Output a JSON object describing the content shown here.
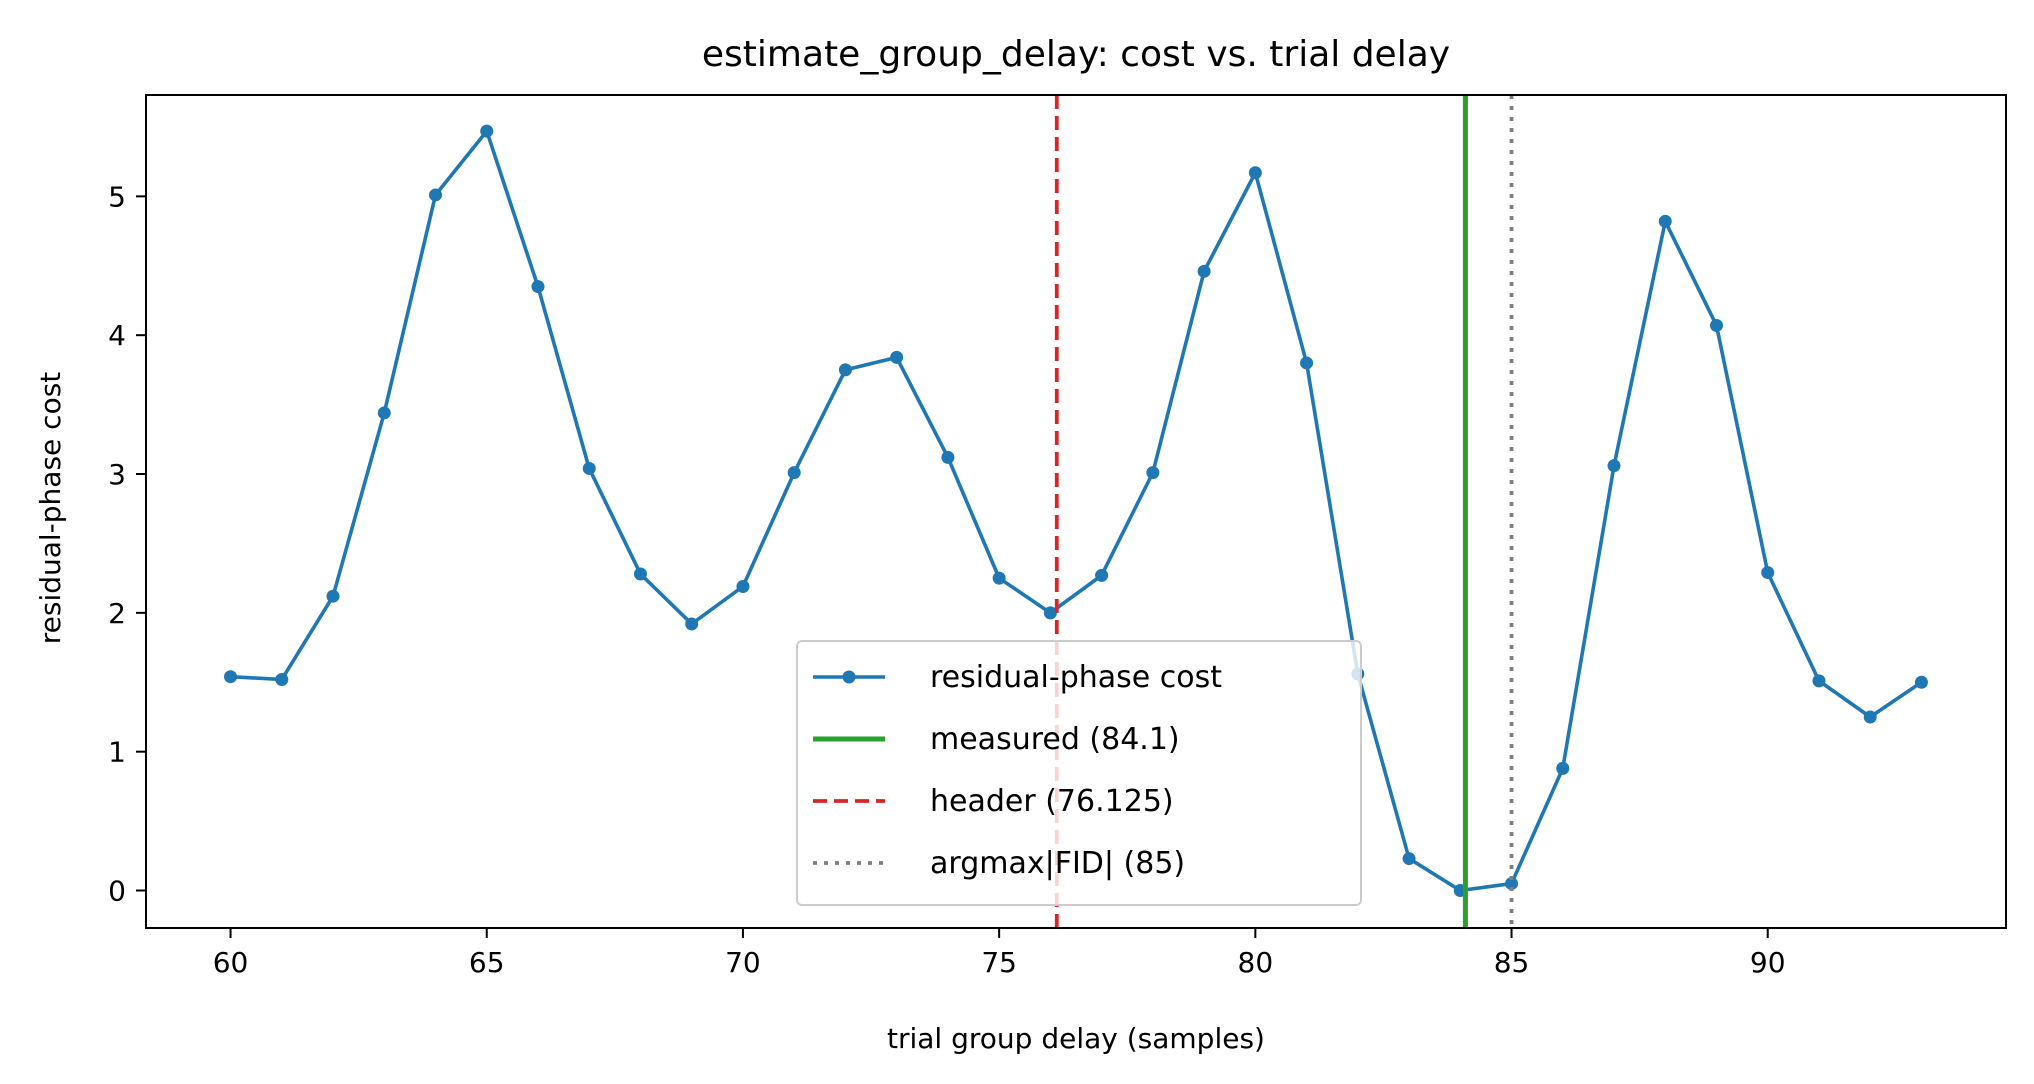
{
  "chart_data": {
    "type": "line",
    "title": "estimate_group_delay: cost vs. trial delay",
    "xlabel": "trial group delay (samples)",
    "ylabel": "residual-phase cost",
    "xlim": [
      58.35,
      94.65
    ],
    "ylim": [
      -0.27,
      5.73
    ],
    "xticks": [
      60,
      65,
      70,
      75,
      80,
      85,
      90
    ],
    "yticks": [
      0,
      1,
      2,
      3,
      4,
      5
    ],
    "grid": false,
    "legend_position": "lower-center",
    "series": [
      {
        "name": "residual-phase cost",
        "color": "#1f77b4",
        "marker": "circle",
        "x": [
          60,
          61,
          62,
          63,
          64,
          65,
          66,
          67,
          68,
          69,
          70,
          71,
          72,
          73,
          74,
          75,
          76,
          77,
          78,
          79,
          80,
          81,
          82,
          83,
          84,
          85,
          86,
          87,
          88,
          89,
          90,
          91,
          92,
          93
        ],
        "y": [
          1.54,
          1.52,
          2.12,
          3.44,
          5.01,
          5.47,
          4.35,
          3.04,
          2.28,
          1.92,
          2.19,
          3.01,
          3.75,
          3.84,
          3.12,
          2.25,
          2.0,
          2.27,
          3.01,
          4.46,
          5.17,
          3.8,
          1.56,
          0.23,
          0.0,
          0.05,
          0.88,
          3.06,
          4.82,
          4.07,
          2.29,
          1.51,
          1.25,
          1.5
        ]
      }
    ],
    "reference_lines": [
      {
        "name": "measured (84.1)",
        "x": 84.1,
        "color": "#2ca02c",
        "style": "solid"
      },
      {
        "name": "header (76.125)",
        "x": 76.125,
        "color": "#d62728",
        "style": "dashed"
      },
      {
        "name": "argmax|FID| (85)",
        "x": 85,
        "color": "#7f7f7f",
        "style": "dotted"
      }
    ]
  }
}
